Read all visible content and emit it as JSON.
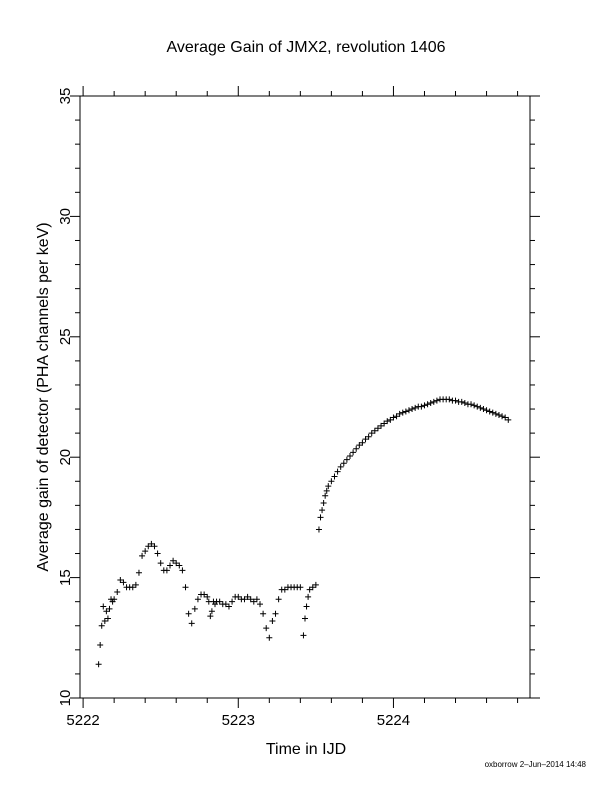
{
  "chart_data": {
    "type": "scatter",
    "title": "Average Gain of JMX2, revolution 1406",
    "xlabel": "Time in IJD",
    "ylabel": "Average gain of detector (PHA channels per keV)",
    "xlim": [
      5221.98,
      5224.88
    ],
    "ylim": [
      10,
      35
    ],
    "xticks": [
      5222,
      5223,
      5224
    ],
    "yticks": [
      10,
      15,
      20,
      25,
      30,
      35
    ],
    "grid": false,
    "legend": "none",
    "marker": "plus",
    "series": [
      {
        "x": [
          5222.1,
          5222.11,
          5222.12,
          5222.13,
          5222.14,
          5222.15,
          5222.16,
          5222.17,
          5222.18,
          5222.19,
          5222.2,
          5222.22,
          5222.24,
          5222.26,
          5222.28,
          5222.3,
          5222.32,
          5222.34,
          5222.36,
          5222.38,
          5222.4,
          5222.42,
          5222.44,
          5222.46,
          5222.48,
          5222.5,
          5222.52,
          5222.54,
          5222.56,
          5222.58,
          5222.6,
          5222.62,
          5222.64,
          5222.66,
          5222.68,
          5222.7,
          5222.72,
          5222.74,
          5222.76,
          5222.78,
          5222.8,
          5222.81,
          5222.82,
          5222.83,
          5222.84,
          5222.85,
          5222.86,
          5222.88,
          5222.9,
          5222.92,
          5222.94,
          5222.96,
          5222.98,
          5223.0,
          5223.02,
          5223.04,
          5223.06,
          5223.08,
          5223.1,
          5223.12,
          5223.14,
          5223.16,
          5223.18,
          5223.2,
          5223.22,
          5223.24,
          5223.26,
          5223.28,
          5223.3,
          5223.32,
          5223.34,
          5223.36,
          5223.38,
          5223.4,
          5223.42,
          5223.43,
          5223.44,
          5223.45,
          5223.46,
          5223.48,
          5223.5
        ],
        "y": [
          11.4,
          12.2,
          13.0,
          13.8,
          13.2,
          13.6,
          13.3,
          13.7,
          14.1,
          14.0,
          14.1,
          14.4,
          14.9,
          14.8,
          14.6,
          14.6,
          14.6,
          14.7,
          15.2,
          15.9,
          16.1,
          16.3,
          16.4,
          16.3,
          16.0,
          15.6,
          15.3,
          15.3,
          15.5,
          15.7,
          15.6,
          15.5,
          15.3,
          14.6,
          13.5,
          13.1,
          13.7,
          14.1,
          14.3,
          14.3,
          14.2,
          14.0,
          13.4,
          13.6,
          14.0,
          13.9,
          14.0,
          14.0,
          13.9,
          13.9,
          13.8,
          14.0,
          14.2,
          14.2,
          14.1,
          14.1,
          14.2,
          14.1,
          14.0,
          14.1,
          13.9,
          13.5,
          12.9,
          12.5,
          13.2,
          13.5,
          14.1,
          14.5,
          14.5,
          14.6,
          14.6,
          14.6,
          14.6,
          14.6,
          12.6,
          13.3,
          13.8,
          14.2,
          14.5,
          14.6,
          14.7
        ]
      },
      {
        "x": [
          5223.52,
          5223.53,
          5223.54,
          5223.55,
          5223.56,
          5223.57,
          5223.58,
          5223.6,
          5223.62,
          5223.64,
          5223.66,
          5223.68,
          5223.7,
          5223.72,
          5223.74,
          5223.76,
          5223.78,
          5223.8,
          5223.82,
          5223.84,
          5223.86,
          5223.88,
          5223.9,
          5223.92,
          5223.94,
          5223.96,
          5223.98,
          5224.0,
          5224.02,
          5224.04,
          5224.06,
          5224.08,
          5224.1,
          5224.12,
          5224.14,
          5224.16,
          5224.18,
          5224.2,
          5224.22,
          5224.24,
          5224.26,
          5224.28,
          5224.3,
          5224.32,
          5224.34,
          5224.36,
          5224.38,
          5224.4,
          5224.42,
          5224.44,
          5224.46,
          5224.48,
          5224.5,
          5224.52,
          5224.54,
          5224.56,
          5224.58,
          5224.6,
          5224.62,
          5224.64,
          5224.66,
          5224.68,
          5224.7,
          5224.72,
          5224.74
        ],
        "y": [
          17.0,
          17.5,
          17.8,
          18.1,
          18.4,
          18.6,
          18.8,
          19.0,
          19.2,
          19.4,
          19.6,
          19.75,
          19.9,
          20.05,
          20.2,
          20.35,
          20.5,
          20.6,
          20.75,
          20.85,
          21.0,
          21.1,
          21.2,
          21.3,
          21.4,
          21.5,
          21.55,
          21.65,
          21.7,
          21.8,
          21.85,
          21.9,
          21.95,
          22.0,
          22.05,
          22.1,
          22.1,
          22.15,
          22.2,
          22.25,
          22.3,
          22.35,
          22.4,
          22.4,
          22.4,
          22.4,
          22.35,
          22.35,
          22.3,
          22.3,
          22.25,
          22.2,
          22.2,
          22.15,
          22.1,
          22.05,
          22.0,
          21.95,
          21.9,
          21.85,
          21.8,
          21.75,
          21.7,
          21.65,
          21.55
        ]
      }
    ]
  },
  "footer": "oxborrow  2–Jun–2014 14:48"
}
